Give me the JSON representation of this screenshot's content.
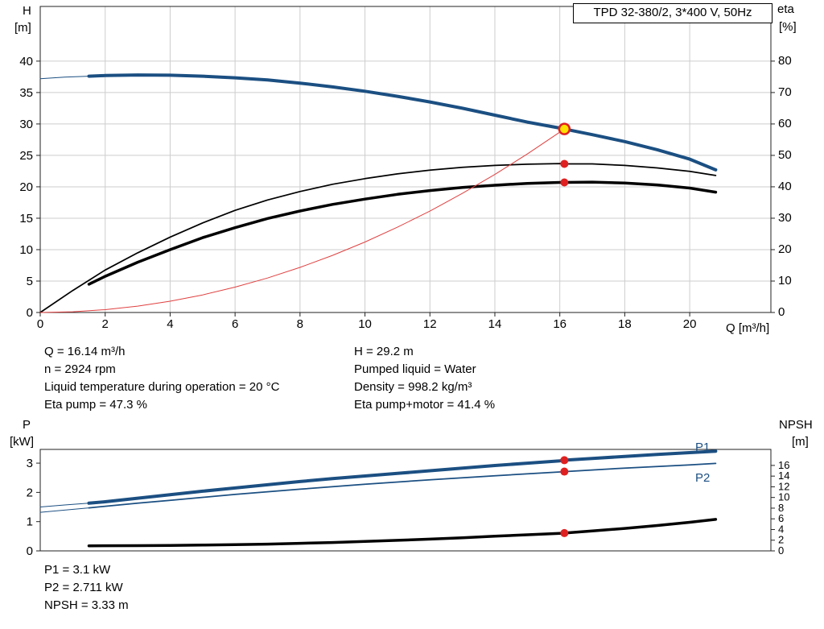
{
  "title_box": "TPD 32-380/2, 3*400 V, 50Hz",
  "info_panel": {
    "left": [
      "Q = 16.14 m³/h",
      "n = 2924 rpm",
      "Liquid temperature during operation = 20 °C",
      "Eta pump = 47.3 %"
    ],
    "right": [
      "H = 29.2 m",
      "Pumped liquid = Water",
      "Density = 998.2 kg/m³",
      "Eta pump+motor = 41.4 %"
    ]
  },
  "results_panel": [
    "P1 = 3.1 kW",
    "P2 = 2.711 kW",
    "NPSH = 3.33 m"
  ],
  "colors": {
    "curve_blue": "#1b4f82",
    "curve_black": "#000000",
    "system_red": "#e04040",
    "marker_red": "#e02020",
    "duty_yellow": "#ffe000",
    "grid_gray": "#cdcdcd"
  },
  "chart_data": [
    {
      "id": "head-chart",
      "type": "line",
      "title": "TPD 32-380/2, 3*400 V, 50Hz",
      "grid": true,
      "x_axis": {
        "label": "Q [m³/h]",
        "min": 0,
        "max": 22.5,
        "ticks": [
          0,
          2,
          4,
          6,
          8,
          10,
          12,
          14,
          16,
          18,
          20
        ]
      },
      "y_left": {
        "name": "H",
        "unit": "[m]",
        "min": 0,
        "max": 48.7,
        "ticks": [
          0,
          5,
          10,
          15,
          20,
          25,
          30,
          35,
          40
        ]
      },
      "y_right": {
        "name": "eta",
        "unit": "[%]",
        "min": 0,
        "max": 97.4,
        "ticks": [
          0,
          10,
          20,
          30,
          40,
          50,
          60,
          70,
          80
        ]
      },
      "series": [
        {
          "name": "H lead-in",
          "axis": "left",
          "color": "#1b4f82",
          "width": 1,
          "data": [
            [
              0,
              37.2
            ],
            [
              0.75,
              37.45
            ],
            [
              1.5,
              37.6
            ]
          ]
        },
        {
          "name": "H pump curve",
          "axis": "left",
          "color": "#1b4f82",
          "width": 4,
          "data": [
            [
              1.5,
              37.6
            ],
            [
              2,
              37.7
            ],
            [
              3,
              37.8
            ],
            [
              4,
              37.75
            ],
            [
              5,
              37.6
            ],
            [
              6,
              37.35
            ],
            [
              7,
              37.0
            ],
            [
              8,
              36.5
            ],
            [
              9,
              35.9
            ],
            [
              10,
              35.2
            ],
            [
              11,
              34.4
            ],
            [
              12,
              33.5
            ],
            [
              13,
              32.5
            ],
            [
              14,
              31.4
            ],
            [
              15,
              30.3
            ],
            [
              16,
              29.35
            ],
            [
              16.14,
              29.2
            ],
            [
              17,
              28.3
            ],
            [
              18,
              27.2
            ],
            [
              19,
              25.9
            ],
            [
              20,
              24.4
            ],
            [
              20.8,
              22.7
            ]
          ]
        },
        {
          "name": "Eta pump",
          "axis": "right",
          "color": "#000000",
          "width": 1.75,
          "data": [
            [
              0,
              0
            ],
            [
              1,
              7
            ],
            [
              2,
              13.5
            ],
            [
              3,
              19
            ],
            [
              4,
              24
            ],
            [
              5,
              28.5
            ],
            [
              6,
              32.5
            ],
            [
              7,
              35.8
            ],
            [
              8,
              38.5
            ],
            [
              9,
              40.8
            ],
            [
              10,
              42.6
            ],
            [
              11,
              44.1
            ],
            [
              12,
              45.3
            ],
            [
              13,
              46.2
            ],
            [
              14,
              46.8
            ],
            [
              15,
              47.2
            ],
            [
              16,
              47.4
            ],
            [
              16.14,
              47.3
            ],
            [
              17,
              47.3
            ],
            [
              18,
              46.8
            ],
            [
              19,
              46.0
            ],
            [
              20,
              44.9
            ],
            [
              20.8,
              43.6
            ]
          ]
        },
        {
          "name": "Eta pump plus motor",
          "axis": "right",
          "color": "#000000",
          "width": 3.5,
          "data": [
            [
              1.5,
              9
            ],
            [
              2,
              11.5
            ],
            [
              3,
              16
            ],
            [
              4,
              20
            ],
            [
              5,
              23.8
            ],
            [
              6,
              27
            ],
            [
              7,
              29.9
            ],
            [
              8,
              32.3
            ],
            [
              9,
              34.4
            ],
            [
              10,
              36.1
            ],
            [
              11,
              37.6
            ],
            [
              12,
              38.8
            ],
            [
              13,
              39.8
            ],
            [
              14,
              40.5
            ],
            [
              15,
              41.1
            ],
            [
              16,
              41.4
            ],
            [
              16.14,
              41.4
            ],
            [
              17,
              41.5
            ],
            [
              18,
              41.2
            ],
            [
              19,
              40.6
            ],
            [
              20,
              39.6
            ],
            [
              20.8,
              38.3
            ]
          ]
        },
        {
          "name": "System curve",
          "axis": "left",
          "color": "#e04040",
          "width": 1,
          "data": [
            [
              0,
              0
            ],
            [
              1,
              0.11
            ],
            [
              2,
              0.45
            ],
            [
              3,
              1.01
            ],
            [
              4,
              1.79
            ],
            [
              5,
              2.8
            ],
            [
              6,
              4.04
            ],
            [
              7,
              5.49
            ],
            [
              8,
              7.18
            ],
            [
              9,
              9.08
            ],
            [
              10,
              11.21
            ],
            [
              11,
              13.57
            ],
            [
              12,
              16.14
            ],
            [
              13,
              18.95
            ],
            [
              14,
              21.97
            ],
            [
              15,
              25.22
            ],
            [
              16,
              28.7
            ],
            [
              16.14,
              29.2
            ]
          ]
        }
      ],
      "points": [
        {
          "name": "duty-point",
          "q": 16.14,
          "v": 29.2,
          "axis": "left",
          "style": "duty"
        },
        {
          "name": "eta-pump-point",
          "q": 16.14,
          "v": 47.3,
          "axis": "right",
          "style": "red"
        },
        {
          "name": "eta-pump-motor-point",
          "q": 16.14,
          "v": 41.4,
          "axis": "right",
          "style": "red"
        }
      ]
    },
    {
      "id": "power-chart",
      "type": "line",
      "grid": false,
      "x_axis": {
        "label": "",
        "min": 0,
        "max": 22.5,
        "ticks": []
      },
      "y_left": {
        "name": "P",
        "unit": "[kW]",
        "min": 0,
        "max": 3.47,
        "ticks": [
          0,
          1,
          2,
          3
        ]
      },
      "y_right": {
        "name": "NPSH",
        "unit": "[m]",
        "min": 0,
        "max": 19.0,
        "ticks": [
          0,
          2,
          4,
          6,
          8,
          10,
          12,
          14,
          16
        ],
        "font": 13
      },
      "series": [
        {
          "name": "P1 lead-in",
          "axis": "left",
          "color": "#1b4f82",
          "width": 1,
          "data": [
            [
              0,
              1.5
            ],
            [
              0.75,
              1.57
            ],
            [
              1.5,
              1.63
            ]
          ]
        },
        {
          "name": "P1",
          "axis": "left",
          "color": "#1b4f82",
          "width": 4,
          "data": [
            [
              1.5,
              1.63
            ],
            [
              2,
              1.68
            ],
            [
              3,
              1.8
            ],
            [
              4,
              1.92
            ],
            [
              5,
              2.04
            ],
            [
              6,
              2.15
            ],
            [
              7,
              2.26
            ],
            [
              8,
              2.37
            ],
            [
              9,
              2.47
            ],
            [
              10,
              2.56
            ],
            [
              11,
              2.65
            ],
            [
              12,
              2.74
            ],
            [
              13,
              2.83
            ],
            [
              14,
              2.92
            ],
            [
              15,
              3.0
            ],
            [
              16,
              3.08
            ],
            [
              16.14,
              3.1
            ],
            [
              17,
              3.16
            ],
            [
              18,
              3.23
            ],
            [
              19,
              3.3
            ],
            [
              20,
              3.36
            ],
            [
              20.8,
              3.41
            ]
          ]
        },
        {
          "name": "P2 lead-in",
          "axis": "left",
          "color": "#1b4f82",
          "width": 1,
          "data": [
            [
              0,
              1.32
            ],
            [
              1.5,
              1.47
            ]
          ]
        },
        {
          "name": "P2",
          "axis": "left",
          "color": "#1b4f82",
          "width": 1.75,
          "data": [
            [
              1.5,
              1.47
            ],
            [
              3,
              1.63
            ],
            [
              4,
              1.73
            ],
            [
              6,
              1.93
            ],
            [
              8,
              2.11
            ],
            [
              10,
              2.28
            ],
            [
              12,
              2.43
            ],
            [
              14,
              2.57
            ],
            [
              16,
              2.7
            ],
            [
              16.14,
              2.711
            ],
            [
              18,
              2.83
            ],
            [
              20,
              2.94
            ],
            [
              20.8,
              2.99
            ]
          ]
        },
        {
          "name": "NPSH",
          "axis": "right",
          "color": "#000000",
          "width": 3.5,
          "data": [
            [
              1.5,
              0.95
            ],
            [
              3,
              0.98
            ],
            [
              4,
              1.02
            ],
            [
              5,
              1.08
            ],
            [
              6,
              1.16
            ],
            [
              7,
              1.27
            ],
            [
              8,
              1.41
            ],
            [
              9,
              1.57
            ],
            [
              10,
              1.76
            ],
            [
              11,
              1.97
            ],
            [
              12,
              2.2
            ],
            [
              13,
              2.46
            ],
            [
              14,
              2.74
            ],
            [
              15,
              3.02
            ],
            [
              16,
              3.28
            ],
            [
              16.14,
              3.33
            ],
            [
              17,
              3.72
            ],
            [
              18,
              4.2
            ],
            [
              19,
              4.75
            ],
            [
              20,
              5.35
            ],
            [
              20.8,
              5.9
            ]
          ]
        }
      ],
      "points": [
        {
          "name": "p1-point",
          "q": 16.14,
          "v": 3.1,
          "axis": "left",
          "style": "red"
        },
        {
          "name": "p2-point",
          "q": 16.14,
          "v": 2.711,
          "axis": "left",
          "style": "red"
        },
        {
          "name": "npsh-point",
          "q": 16.14,
          "v": 3.33,
          "axis": "right",
          "style": "red"
        }
      ],
      "series_labels": [
        {
          "text": "P1"
        },
        {
          "text": "P2"
        }
      ]
    }
  ]
}
